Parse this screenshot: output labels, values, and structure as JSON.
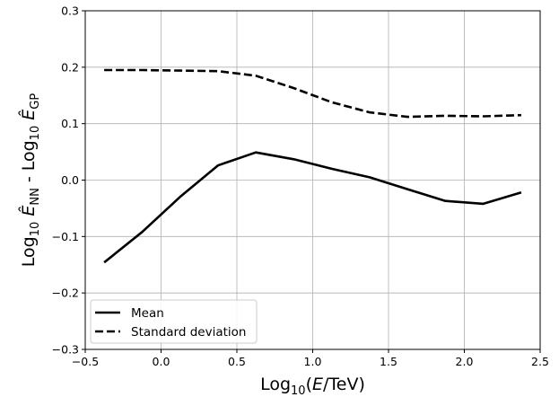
{
  "chart_data": {
    "type": "line",
    "xlabel": "Log10(E/TeV)",
    "ylabel": "Log10 Ê_NN - Log10 Ê_GP",
    "xlim": [
      -0.5,
      2.5
    ],
    "ylim": [
      -0.3,
      0.3
    ],
    "x_ticks": [
      -0.5,
      0.0,
      0.5,
      1.0,
      1.5,
      2.0,
      2.5
    ],
    "x_tick_labels": [
      "−0.5",
      "0.0",
      "0.5",
      "1.0",
      "1.5",
      "2.0",
      "2.5"
    ],
    "y_ticks": [
      -0.3,
      -0.2,
      -0.1,
      0.0,
      0.1,
      0.2,
      0.3
    ],
    "y_tick_labels": [
      "−0.3",
      "−0.2",
      "−0.1",
      "0.0",
      "0.1",
      "0.2",
      "0.3"
    ],
    "grid": true,
    "legend_position": "lower-left",
    "series": [
      {
        "name": "Mean",
        "line_style": "solid",
        "color": "#000000",
        "x": [
          -0.375,
          -0.125,
          0.125,
          0.375,
          0.625,
          0.875,
          1.125,
          1.375,
          1.625,
          1.875,
          2.125,
          2.375
        ],
        "y": [
          -0.146,
          -0.092,
          -0.03,
          0.026,
          0.049,
          0.037,
          0.02,
          0.005,
          -0.016,
          -0.037,
          -0.042,
          -0.022
        ]
      },
      {
        "name": "Standard deviation",
        "line_style": "dashed",
        "color": "#000000",
        "x": [
          -0.375,
          -0.125,
          0.125,
          0.375,
          0.625,
          0.875,
          1.125,
          1.375,
          1.625,
          1.875,
          2.125,
          2.375
        ],
        "y": [
          0.195,
          0.195,
          0.194,
          0.193,
          0.185,
          0.163,
          0.138,
          0.12,
          0.112,
          0.114,
          0.113,
          0.115
        ]
      }
    ]
  }
}
